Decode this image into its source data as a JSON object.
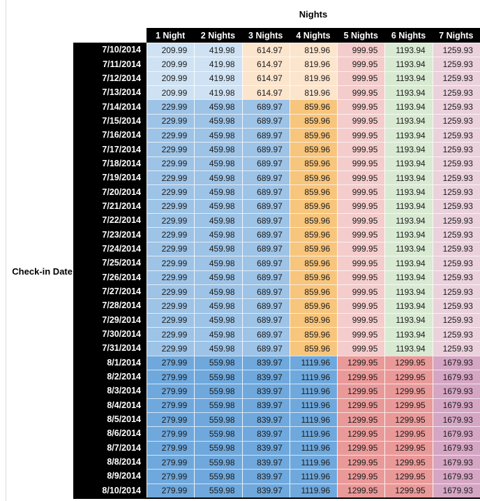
{
  "page": {
    "background": "#ffffff",
    "left_edge_line_color": "#d9d9d9"
  },
  "table": {
    "title": "Nights",
    "row_axis_label": "Check-in Date",
    "columns": [
      "1 Night",
      "2 Nights",
      "3 Nights",
      "4 Nights",
      "5 Nights",
      "6 Nights",
      "7 Nights"
    ],
    "header_bg": "#000000",
    "header_text_color": "#ffffff",
    "date_col_bg": "#000000",
    "date_text_color": "#ffffff",
    "value_text_color": "#1a1a1a",
    "cell_colors": {
      "early_july": [
        "#cfe2f3",
        "#cfe2f3",
        "#fce5cd",
        "#fce5cd",
        "#f4cccc",
        "#d9ead3",
        "#ead1dc"
      ],
      "mid_july": [
        "#9dc3e6",
        "#9dc3e6",
        "#9dc3e6",
        "#f7c57c",
        "#f4cccc",
        "#d9ead3",
        "#ead1dc"
      ],
      "august": [
        "#6fa8dc",
        "#6fa8dc",
        "#6fa8dc",
        "#6fa8dc",
        "#ea9999",
        "#ea9999",
        "#d5a6c4"
      ]
    },
    "rows": [
      {
        "date": "7/10/2014",
        "group": "early_july",
        "prices": [
          "209.99",
          "419.98",
          "614.97",
          "819.96",
          "999.95",
          "1193.94",
          "1259.93"
        ]
      },
      {
        "date": "7/11/2014",
        "group": "early_july",
        "prices": [
          "209.99",
          "419.98",
          "614.97",
          "819.96",
          "999.95",
          "1193.94",
          "1259.93"
        ]
      },
      {
        "date": "7/12/2014",
        "group": "early_july",
        "prices": [
          "209.99",
          "419.98",
          "614.97",
          "819.96",
          "999.95",
          "1193.94",
          "1259.93"
        ]
      },
      {
        "date": "7/13/2014",
        "group": "early_july",
        "prices": [
          "209.99",
          "419.98",
          "614.97",
          "819.96",
          "999.95",
          "1193.94",
          "1259.93"
        ]
      },
      {
        "date": "7/14/2014",
        "group": "mid_july",
        "prices": [
          "229.99",
          "459.98",
          "689.97",
          "859.96",
          "999.95",
          "1193.94",
          "1259.93"
        ]
      },
      {
        "date": "7/15/2014",
        "group": "mid_july",
        "prices": [
          "229.99",
          "459.98",
          "689.97",
          "859.96",
          "999.95",
          "1193.94",
          "1259.93"
        ]
      },
      {
        "date": "7/16/2014",
        "group": "mid_july",
        "prices": [
          "229.99",
          "459.98",
          "689.97",
          "859.96",
          "999.95",
          "1193.94",
          "1259.93"
        ]
      },
      {
        "date": "7/17/2014",
        "group": "mid_july",
        "prices": [
          "229.99",
          "459.98",
          "689.97",
          "859.96",
          "999.95",
          "1193.94",
          "1259.93"
        ]
      },
      {
        "date": "7/18/2014",
        "group": "mid_july",
        "prices": [
          "229.99",
          "459.98",
          "689.97",
          "859.96",
          "999.95",
          "1193.94",
          "1259.93"
        ]
      },
      {
        "date": "7/19/2014",
        "group": "mid_july",
        "prices": [
          "229.99",
          "459.98",
          "689.97",
          "859.96",
          "999.95",
          "1193.94",
          "1259.93"
        ]
      },
      {
        "date": "7/20/2014",
        "group": "mid_july",
        "prices": [
          "229.99",
          "459.98",
          "689.97",
          "859.96",
          "999.95",
          "1193.94",
          "1259.93"
        ]
      },
      {
        "date": "7/21/2014",
        "group": "mid_july",
        "prices": [
          "229.99",
          "459.98",
          "689.97",
          "859.96",
          "999.95",
          "1193.94",
          "1259.93"
        ]
      },
      {
        "date": "7/22/2014",
        "group": "mid_july",
        "prices": [
          "229.99",
          "459.98",
          "689.97",
          "859.96",
          "999.95",
          "1193.94",
          "1259.93"
        ]
      },
      {
        "date": "7/23/2014",
        "group": "mid_july",
        "prices": [
          "229.99",
          "459.98",
          "689.97",
          "859.96",
          "999.95",
          "1193.94",
          "1259.93"
        ]
      },
      {
        "date": "7/24/2014",
        "group": "mid_july",
        "prices": [
          "229.99",
          "459.98",
          "689.97",
          "859.96",
          "999.95",
          "1193.94",
          "1259.93"
        ]
      },
      {
        "date": "7/25/2014",
        "group": "mid_july",
        "prices": [
          "229.99",
          "459.98",
          "689.97",
          "859.96",
          "999.95",
          "1193.94",
          "1259.93"
        ]
      },
      {
        "date": "7/26/2014",
        "group": "mid_july",
        "prices": [
          "229.99",
          "459.98",
          "689.97",
          "859.96",
          "999.95",
          "1193.94",
          "1259.93"
        ]
      },
      {
        "date": "7/27/2014",
        "group": "mid_july",
        "prices": [
          "229.99",
          "459.98",
          "689.97",
          "859.96",
          "999.95",
          "1193.94",
          "1259.93"
        ]
      },
      {
        "date": "7/28/2014",
        "group": "mid_july",
        "prices": [
          "229.99",
          "459.98",
          "689.97",
          "859.96",
          "999.95",
          "1193.94",
          "1259.93"
        ]
      },
      {
        "date": "7/29/2014",
        "group": "mid_july",
        "prices": [
          "229.99",
          "459.98",
          "689.97",
          "859.96",
          "999.95",
          "1193.94",
          "1259.93"
        ]
      },
      {
        "date": "7/30/2014",
        "group": "mid_july",
        "prices": [
          "229.99",
          "459.98",
          "689.97",
          "859.96",
          "999.95",
          "1193.94",
          "1259.93"
        ]
      },
      {
        "date": "7/31/2014",
        "group": "mid_july",
        "prices": [
          "229.99",
          "459.98",
          "689.97",
          "859.96",
          "999.95",
          "1193.94",
          "1259.93"
        ]
      },
      {
        "date": "8/1/2014",
        "group": "august",
        "prices": [
          "279.99",
          "559.98",
          "839.97",
          "1119.96",
          "1299.95",
          "1299.95",
          "1679.93"
        ]
      },
      {
        "date": "8/2/2014",
        "group": "august",
        "prices": [
          "279.99",
          "559.98",
          "839.97",
          "1119.96",
          "1299.95",
          "1299.95",
          "1679.93"
        ]
      },
      {
        "date": "8/3/2014",
        "group": "august",
        "prices": [
          "279.99",
          "559.98",
          "839.97",
          "1119.96",
          "1299.95",
          "1299.95",
          "1679.93"
        ]
      },
      {
        "date": "8/4/2014",
        "group": "august",
        "prices": [
          "279.99",
          "559.98",
          "839.97",
          "1119.96",
          "1299.95",
          "1299.95",
          "1679.93"
        ]
      },
      {
        "date": "8/5/2014",
        "group": "august",
        "prices": [
          "279.99",
          "559.98",
          "839.97",
          "1119.96",
          "1299.95",
          "1299.95",
          "1679.93"
        ]
      },
      {
        "date": "8/6/2014",
        "group": "august",
        "prices": [
          "279.99",
          "559.98",
          "839.97",
          "1119.96",
          "1299.95",
          "1299.95",
          "1679.93"
        ]
      },
      {
        "date": "8/7/2014",
        "group": "august",
        "prices": [
          "279.99",
          "559.98",
          "839.97",
          "1119.96",
          "1299.95",
          "1299.95",
          "1679.93"
        ]
      },
      {
        "date": "8/8/2014",
        "group": "august",
        "prices": [
          "279.99",
          "559.98",
          "839.97",
          "1119.96",
          "1299.95",
          "1299.95",
          "1679.93"
        ]
      },
      {
        "date": "8/9/2014",
        "group": "august",
        "prices": [
          "279.99",
          "559.98",
          "839.97",
          "1119.96",
          "1299.95",
          "1299.95",
          "1679.93"
        ]
      },
      {
        "date": "8/10/2014",
        "group": "august",
        "prices": [
          "279.99",
          "559.98",
          "839.97",
          "1119.96",
          "1299.95",
          "1299.95",
          "1679.93"
        ]
      }
    ]
  },
  "chart_data": {
    "type": "table",
    "title": "Nights",
    "row_axis_label": "Check-in Date",
    "columns": [
      "1 Night",
      "2 Nights",
      "3 Nights",
      "4 Nights",
      "5 Nights",
      "6 Nights",
      "7 Nights"
    ],
    "rows": [
      {
        "date": "7/10/2014",
        "values": [
          209.99,
          419.98,
          614.97,
          819.96,
          999.95,
          1193.94,
          1259.93
        ]
      },
      {
        "date": "7/11/2014",
        "values": [
          209.99,
          419.98,
          614.97,
          819.96,
          999.95,
          1193.94,
          1259.93
        ]
      },
      {
        "date": "7/12/2014",
        "values": [
          209.99,
          419.98,
          614.97,
          819.96,
          999.95,
          1193.94,
          1259.93
        ]
      },
      {
        "date": "7/13/2014",
        "values": [
          209.99,
          419.98,
          614.97,
          819.96,
          999.95,
          1193.94,
          1259.93
        ]
      },
      {
        "date": "7/14/2014",
        "values": [
          229.99,
          459.98,
          689.97,
          859.96,
          999.95,
          1193.94,
          1259.93
        ]
      },
      {
        "date": "7/15/2014",
        "values": [
          229.99,
          459.98,
          689.97,
          859.96,
          999.95,
          1193.94,
          1259.93
        ]
      },
      {
        "date": "7/16/2014",
        "values": [
          229.99,
          459.98,
          689.97,
          859.96,
          999.95,
          1193.94,
          1259.93
        ]
      },
      {
        "date": "7/17/2014",
        "values": [
          229.99,
          459.98,
          689.97,
          859.96,
          999.95,
          1193.94,
          1259.93
        ]
      },
      {
        "date": "7/18/2014",
        "values": [
          229.99,
          459.98,
          689.97,
          859.96,
          999.95,
          1193.94,
          1259.93
        ]
      },
      {
        "date": "7/19/2014",
        "values": [
          229.99,
          459.98,
          689.97,
          859.96,
          999.95,
          1193.94,
          1259.93
        ]
      },
      {
        "date": "7/20/2014",
        "values": [
          229.99,
          459.98,
          689.97,
          859.96,
          999.95,
          1193.94,
          1259.93
        ]
      },
      {
        "date": "7/21/2014",
        "values": [
          229.99,
          459.98,
          689.97,
          859.96,
          999.95,
          1193.94,
          1259.93
        ]
      },
      {
        "date": "7/22/2014",
        "values": [
          229.99,
          459.98,
          689.97,
          859.96,
          999.95,
          1193.94,
          1259.93
        ]
      },
      {
        "date": "7/23/2014",
        "values": [
          229.99,
          459.98,
          689.97,
          859.96,
          999.95,
          1193.94,
          1259.93
        ]
      },
      {
        "date": "7/24/2014",
        "values": [
          229.99,
          459.98,
          689.97,
          859.96,
          999.95,
          1193.94,
          1259.93
        ]
      },
      {
        "date": "7/25/2014",
        "values": [
          229.99,
          459.98,
          689.97,
          859.96,
          999.95,
          1193.94,
          1259.93
        ]
      },
      {
        "date": "7/26/2014",
        "values": [
          229.99,
          459.98,
          689.97,
          859.96,
          999.95,
          1193.94,
          1259.93
        ]
      },
      {
        "date": "7/27/2014",
        "values": [
          229.99,
          459.98,
          689.97,
          859.96,
          999.95,
          1193.94,
          1259.93
        ]
      },
      {
        "date": "7/28/2014",
        "values": [
          229.99,
          459.98,
          689.97,
          859.96,
          999.95,
          1193.94,
          1259.93
        ]
      },
      {
        "date": "7/29/2014",
        "values": [
          229.99,
          459.98,
          689.97,
          859.96,
          999.95,
          1193.94,
          1259.93
        ]
      },
      {
        "date": "7/30/2014",
        "values": [
          229.99,
          459.98,
          689.97,
          859.96,
          999.95,
          1193.94,
          1259.93
        ]
      },
      {
        "date": "7/31/2014",
        "values": [
          229.99,
          459.98,
          689.97,
          859.96,
          999.95,
          1193.94,
          1259.93
        ]
      },
      {
        "date": "8/1/2014",
        "values": [
          279.99,
          559.98,
          839.97,
          1119.96,
          1299.95,
          1299.95,
          1679.93
        ]
      },
      {
        "date": "8/2/2014",
        "values": [
          279.99,
          559.98,
          839.97,
          1119.96,
          1299.95,
          1299.95,
          1679.93
        ]
      },
      {
        "date": "8/3/2014",
        "values": [
          279.99,
          559.98,
          839.97,
          1119.96,
          1299.95,
          1299.95,
          1679.93
        ]
      },
      {
        "date": "8/4/2014",
        "values": [
          279.99,
          559.98,
          839.97,
          1119.96,
          1299.95,
          1299.95,
          1679.93
        ]
      },
      {
        "date": "8/5/2014",
        "values": [
          279.99,
          559.98,
          839.97,
          1119.96,
          1299.95,
          1299.95,
          1679.93
        ]
      },
      {
        "date": "8/6/2014",
        "values": [
          279.99,
          559.98,
          839.97,
          1119.96,
          1299.95,
          1299.95,
          1679.93
        ]
      },
      {
        "date": "8/7/2014",
        "values": [
          279.99,
          559.98,
          839.97,
          1119.96,
          1299.95,
          1299.95,
          1679.93
        ]
      },
      {
        "date": "8/8/2014",
        "values": [
          279.99,
          559.98,
          839.97,
          1119.96,
          1299.95,
          1299.95,
          1679.93
        ]
      },
      {
        "date": "8/9/2014",
        "values": [
          279.99,
          559.98,
          839.97,
          1119.96,
          1299.95,
          1299.95,
          1679.93
        ]
      },
      {
        "date": "8/10/2014",
        "values": [
          279.99,
          559.98,
          839.97,
          1119.96,
          1299.95,
          1299.95,
          1679.93
        ]
      }
    ]
  }
}
